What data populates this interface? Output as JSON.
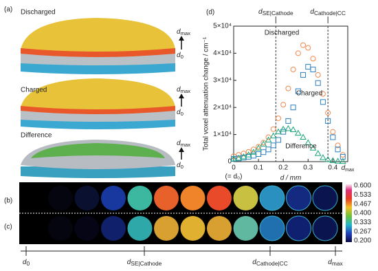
{
  "chart_data": {
    "type": "scatter",
    "panel_label": "(d)",
    "xlabel": "d / mm",
    "ylabel": "Total voxel attenuation change / cm⁻¹",
    "x": [
      0,
      0.02,
      0.04,
      0.06,
      0.08,
      0.1,
      0.12,
      0.14,
      0.16,
      0.18,
      0.2,
      0.22,
      0.24,
      0.26,
      0.28,
      0.3,
      0.32,
      0.34,
      0.36,
      0.38,
      0.4,
      0.42,
      0.44
    ],
    "series": [
      {
        "name": "Discharged",
        "color": "#f0884a",
        "marker": "circle",
        "values": [
          2000,
          2500,
          3000,
          3600,
          4500,
          5500,
          7000,
          9000,
          12000,
          16000,
          21000,
          27000,
          34000,
          40000,
          43000,
          42000,
          38000,
          32000,
          25000,
          18000,
          11000,
          6000,
          2500
        ]
      },
      {
        "name": "Charged",
        "color": "#2a7fc0",
        "marker": "square",
        "values": [
          1000,
          1200,
          1500,
          1800,
          2200,
          2800,
          3500,
          4500,
          6000,
          8000,
          11000,
          15000,
          20000,
          26000,
          32000,
          35000,
          34000,
          29000,
          22000,
          15000,
          9000,
          4500,
          1800
        ]
      },
      {
        "name": "Difference",
        "color": "#1aa37a",
        "marker": "triangle",
        "values": [
          1000,
          1300,
          1800,
          2500,
          3500,
          5000,
          6500,
          8000,
          9500,
          11000,
          12000,
          12200,
          11800,
          10500,
          9000,
          7000,
          5000,
          3000,
          1500,
          800,
          400,
          200,
          100
        ]
      }
    ],
    "xlim": [
      0,
      0.46
    ],
    "xticks": [
      0,
      0.1,
      0.2,
      0.3,
      0.4
    ],
    "ylim": [
      0,
      50000
    ],
    "yticks": [
      0,
      {
        "value": 10000,
        "label": "1×10⁴"
      },
      {
        "value": 20000,
        "label": "2×10⁴"
      },
      {
        "value": 30000,
        "label": "3×10⁴"
      },
      {
        "value": 40000,
        "label": "4×10⁴"
      },
      {
        "value": 50000,
        "label": "5×10⁴"
      }
    ],
    "x_end_label": {
      "d": "d",
      "sub": "max",
      "x": 0.46
    },
    "x0_note": "(= d₀)",
    "vlines": [
      {
        "d": "d",
        "sub": "SE|Cathode",
        "x": 0.17
      },
      {
        "d": "d",
        "sub": "Cathode|CC",
        "x": 0.38
      }
    ]
  },
  "panels": {
    "a": {
      "label": "(a)",
      "images": [
        {
          "title": "Discharged",
          "top": {
            "d": "d",
            "sub": "max"
          },
          "bottom": {
            "d": "d",
            "sub": "0"
          }
        },
        {
          "title": "Charged",
          "top": {
            "d": "d",
            "sub": "max"
          },
          "bottom": {
            "d": "d",
            "sub": "0"
          }
        },
        {
          "title": "Difference",
          "top": {
            "d": "d",
            "sub": "max"
          },
          "bottom": {
            "d": "d",
            "sub": "0"
          }
        }
      ]
    },
    "b_label": "(b)",
    "c_label": "(c)",
    "colorbar_ticks": [
      "0.600",
      "0.533",
      "0.467",
      "0.400",
      "0.333",
      "0.267",
      "0.200"
    ],
    "bottom_axis": [
      {
        "d": "d",
        "sub": "0"
      },
      {
        "d": "d",
        "sub": "SE|Cathode"
      },
      {
        "d": "d",
        "sub": "Cathode|CC"
      },
      {
        "d": "d",
        "sub": "max"
      }
    ]
  }
}
